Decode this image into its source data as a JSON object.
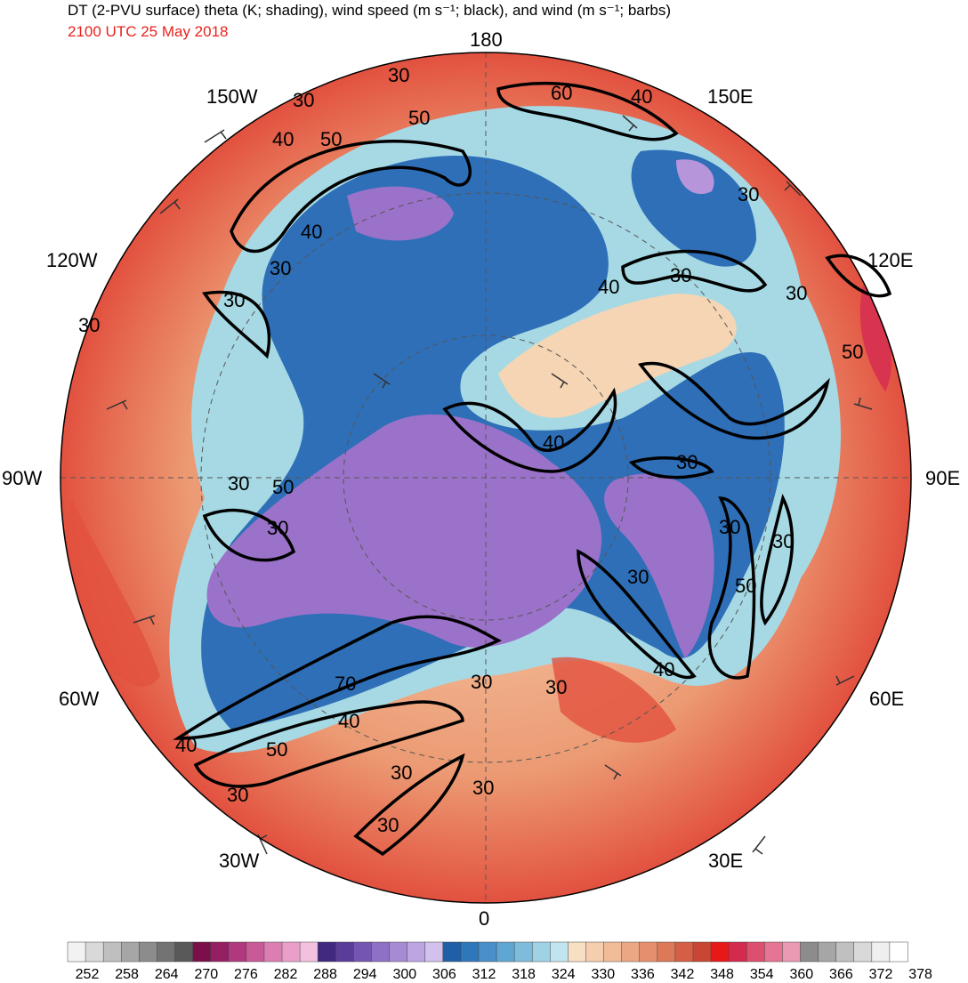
{
  "header": {
    "title": "DT (2-PVU surface) theta (K; shading), wind speed (m s⁻¹; black), and wind (m s⁻¹; barbs)",
    "valid_time": "2100 UTC 25 May 2018"
  },
  "map": {
    "projection": "north-polar-stereographic",
    "longitude_labels": {
      "top": "180",
      "bottom": "0",
      "left": "90W",
      "right": "90E",
      "upper_left_1": "150W",
      "upper_left_2": "120W",
      "upper_right_1": "150E",
      "upper_right_2": "120E",
      "lower_left_1": "60W",
      "lower_left_2": "30W",
      "lower_right_1": "60E",
      "lower_right_2": "30E"
    },
    "wind_speed_contour_labels": [
      "30",
      "40",
      "50",
      "60",
      "70"
    ],
    "shading_colors": {
      "cold_purple": "#9b72c9",
      "deep_blue": "#2e6fb8",
      "light_blue": "#a6d9e4",
      "peach": "#f6d5b4",
      "orange": "#ec9a73",
      "red": "#e2513f"
    }
  },
  "colorbar": {
    "ticks": [
      "252",
      "258",
      "264",
      "270",
      "276",
      "282",
      "288",
      "294",
      "300",
      "306",
      "312",
      "318",
      "324",
      "330",
      "336",
      "342",
      "348",
      "354",
      "360",
      "366",
      "372",
      "378"
    ],
    "colors": [
      "#f2f2f2",
      "#d9d9d9",
      "#bfbfbf",
      "#a6a6a6",
      "#8c8c8c",
      "#737373",
      "#595959",
      "#7a0f4a",
      "#961f63",
      "#b0387c",
      "#c85a97",
      "#db7fb2",
      "#ea9fcb",
      "#f3c0df",
      "#3f2a7f",
      "#5a3d99",
      "#7456b0",
      "#8e70c4",
      "#a68ad3",
      "#bca5e0",
      "#d2c1ec",
      "#1f5fa8",
      "#2f77bb",
      "#4a8fc8",
      "#5fa6d2",
      "#7fbcdc",
      "#a0d2e6",
      "#c0e5ef",
      "#f7dfc4",
      "#f4ceaf",
      "#f1bc98",
      "#eca682",
      "#e58f6c",
      "#dd7858",
      "#d45f45",
      "#c84633",
      "#e81818",
      "#d42a4e",
      "#dd4f6e",
      "#e57592",
      "#ea9ab2",
      "#8c8c8c",
      "#a6a6a6",
      "#c0c0c0",
      "#d9d9d9",
      "#efefef",
      "#ffffff"
    ]
  }
}
